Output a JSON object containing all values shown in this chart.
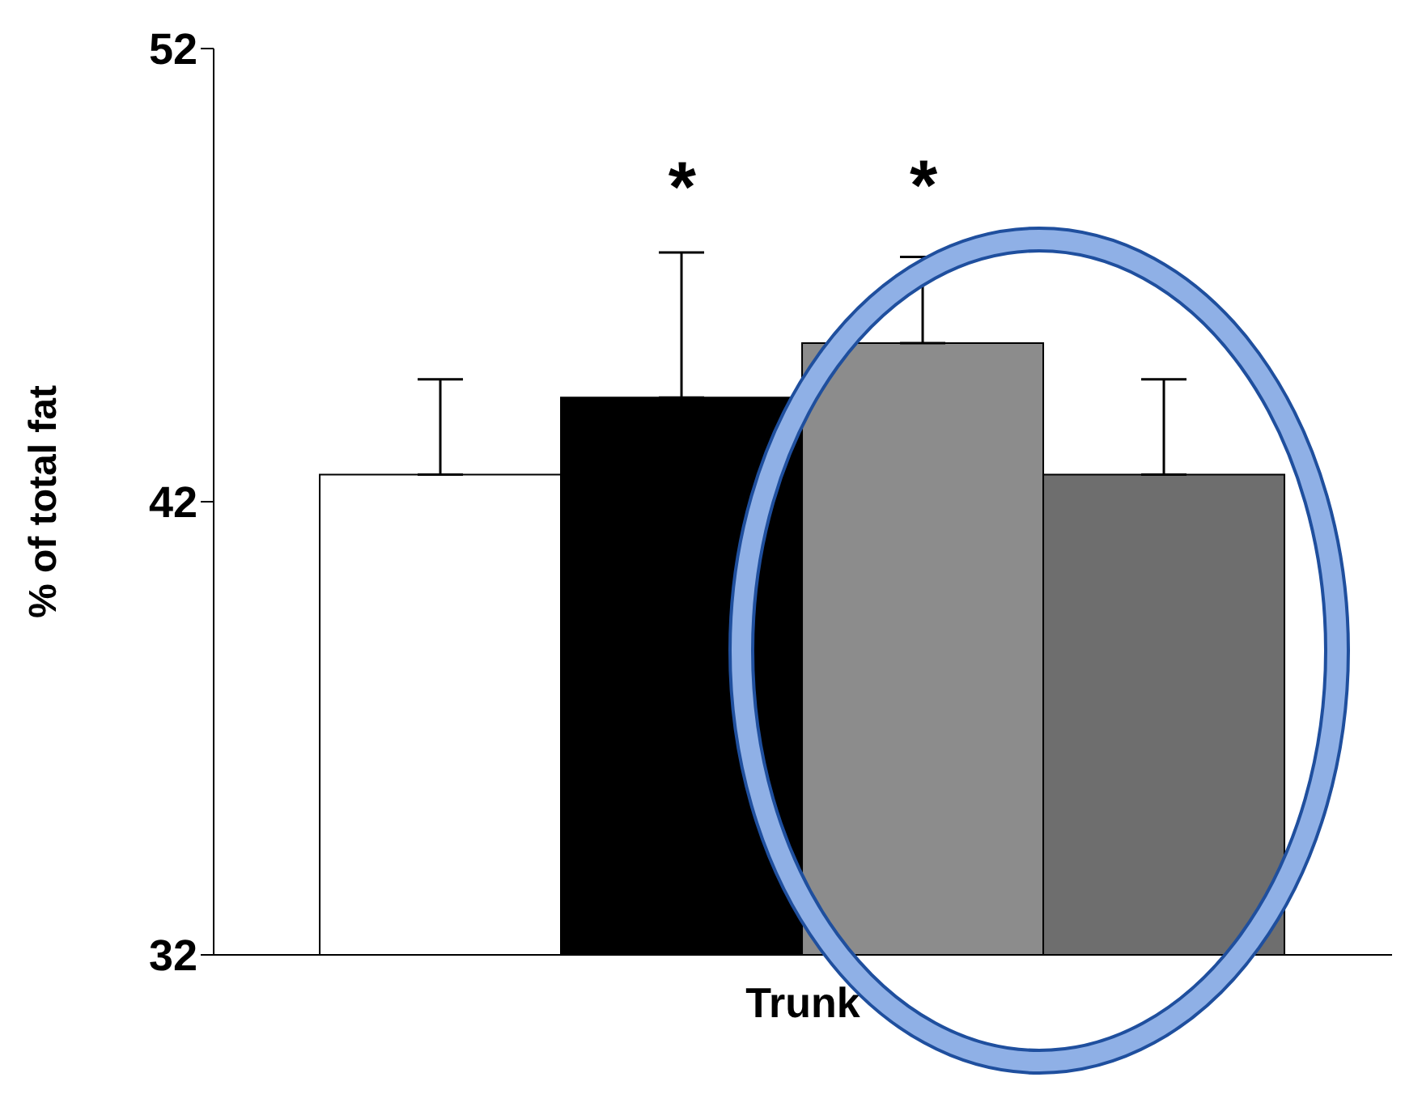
{
  "chart_data": {
    "type": "bar",
    "ylabel": "% of total fat",
    "categories": [
      "Trunk"
    ],
    "series": [
      {
        "color": "#ffffff",
        "values": [
          42.6
        ],
        "errors": [
          [
            42.6,
            44.7
          ]
        ]
      },
      {
        "color": "#000000",
        "values": [
          44.3
        ],
        "errors": [
          [
            44.3,
            47.5
          ]
        ]
      },
      {
        "color": "#8c8c8c",
        "values": [
          45.5
        ],
        "errors": [
          [
            45.5,
            47.4
          ]
        ]
      },
      {
        "color": "#6e6e6e",
        "values": [
          42.6
        ],
        "errors": [
          [
            42.6,
            44.7
          ]
        ]
      }
    ],
    "ylim": [
      32,
      52
    ],
    "yticks": [
      32,
      42,
      52
    ],
    "annotations": [
      "*",
      "*"
    ]
  }
}
